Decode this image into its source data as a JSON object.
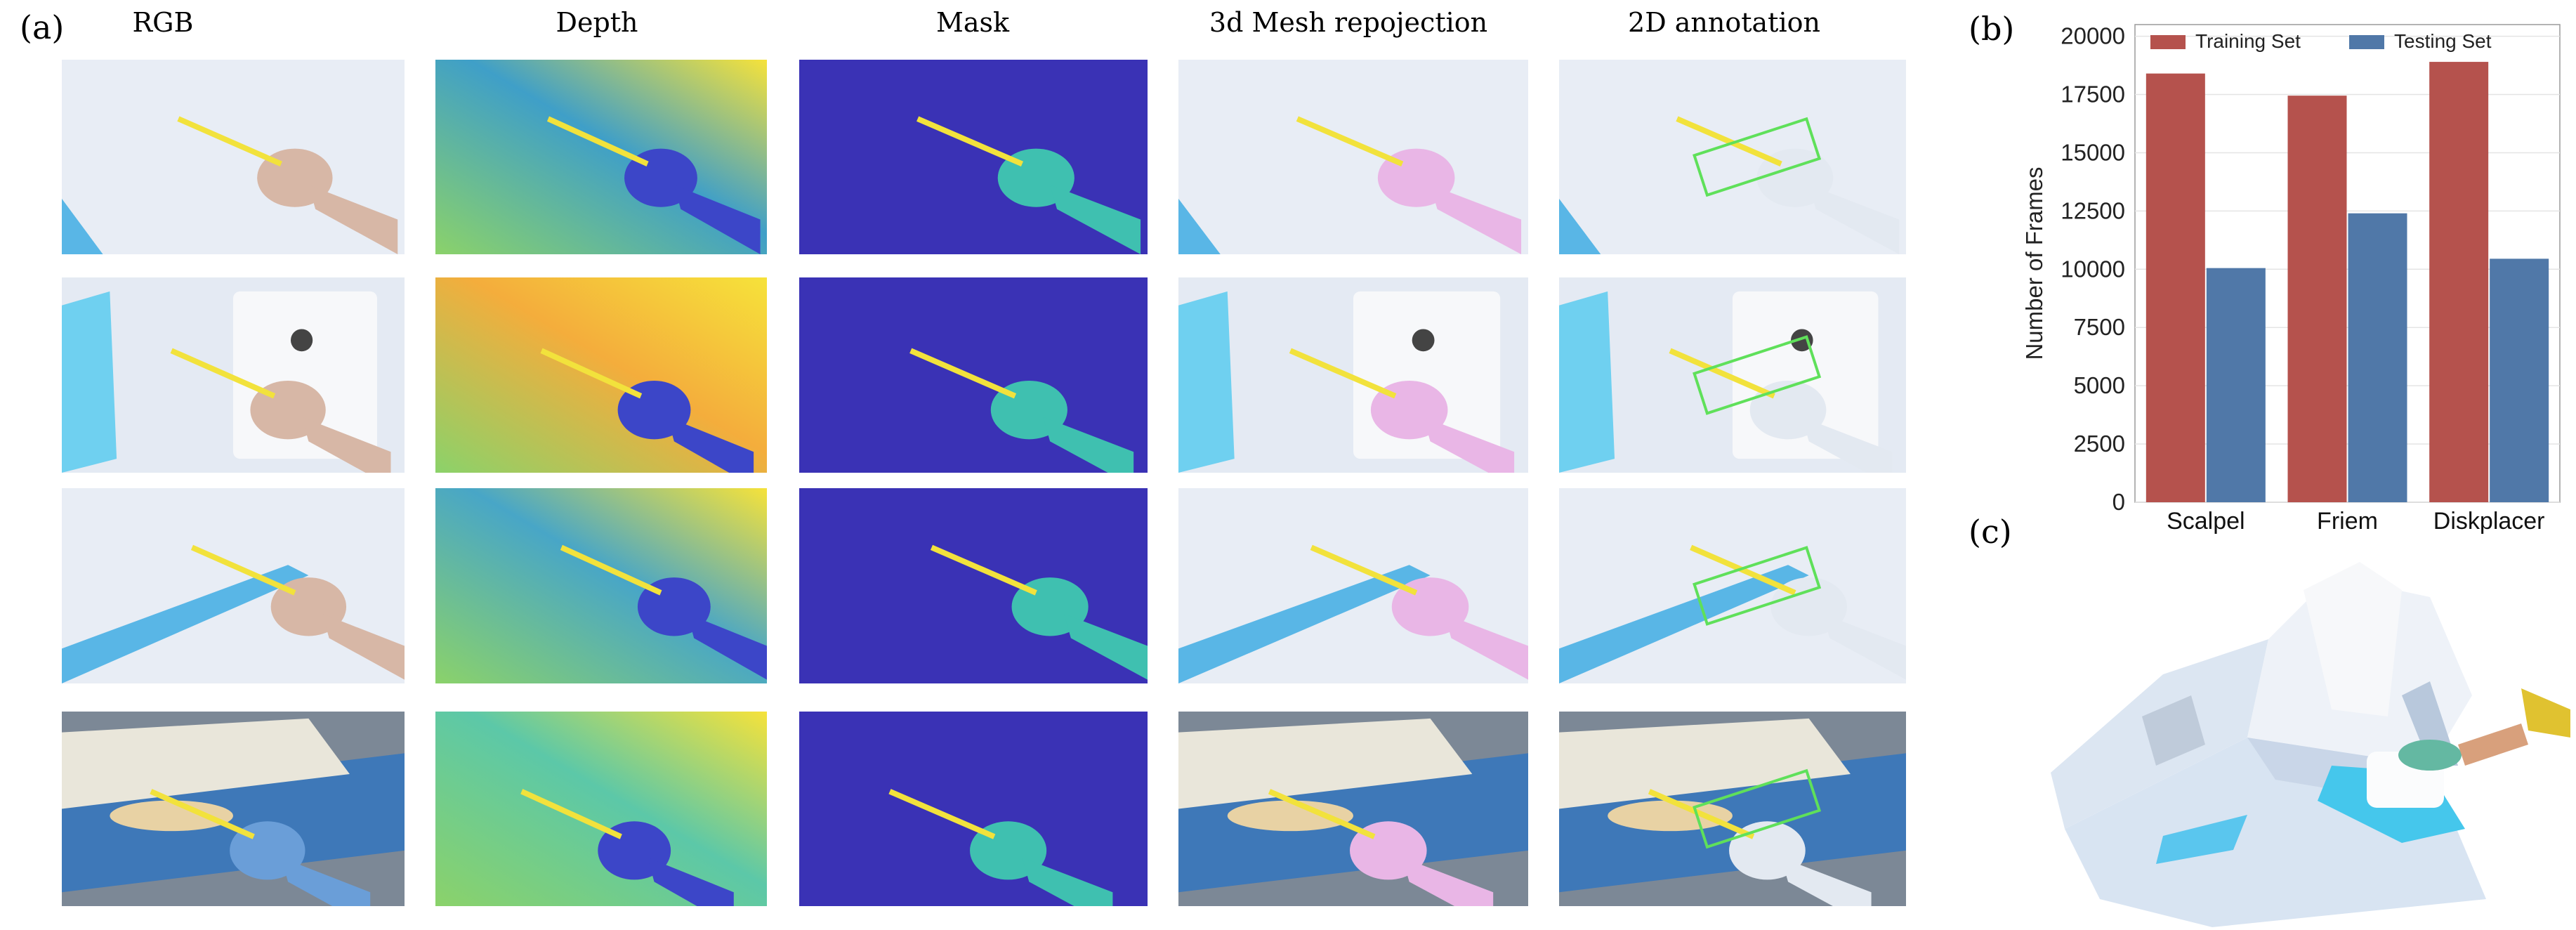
{
  "figure": {
    "panel_a_label": "(a)",
    "panel_b_label": "(b)",
    "panel_c_label": "(c)",
    "columns": [
      "RGB",
      "Depth",
      "Mask",
      "3d Mesh repojection",
      "2D annotation"
    ]
  },
  "colors": {
    "mask_background": "#3A32B5",
    "mask_hand": "#3FC0B0",
    "mask_tool": "#F2E23C",
    "training_bar": "#B5524D",
    "testing_bar": "#5078A8",
    "annotation_box": "#5FE05A",
    "mesh_hand": "#E9B6E6"
  },
  "chart_data": {
    "type": "bar",
    "categories": [
      "Scalpel",
      "Friem",
      "Diskplacer"
    ],
    "series": [
      {
        "name": "Training Set",
        "values": [
          18400,
          17450,
          18900
        ]
      },
      {
        "name": "Testing Set",
        "values": [
          10050,
          12400,
          10450
        ]
      }
    ],
    "ylabel": "Number of Frames",
    "xlabel": "",
    "ylim": [
      0,
      20500
    ],
    "yticks": [
      0,
      2500,
      5000,
      7500,
      10000,
      12500,
      15000,
      17500,
      20000
    ],
    "grid": true,
    "legend_position": "top"
  }
}
